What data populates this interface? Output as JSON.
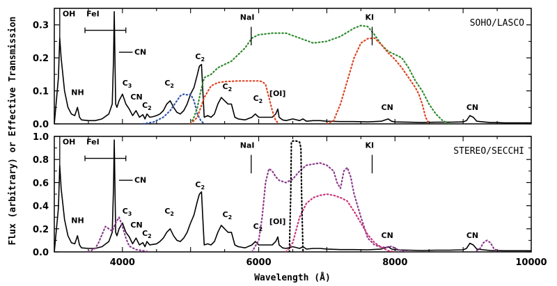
{
  "chart_data": {
    "type": "line",
    "xlabel": "Wavelength (Å)",
    "ylabel": "Flux (arbitrary) or Effective Transmission",
    "xlim": [
      3000,
      10000
    ],
    "x_ticks": [
      4000,
      6000,
      8000,
      10000
    ],
    "x_tick_labels": [
      "4000",
      "6000",
      "8000",
      "10000"
    ],
    "panels": [
      {
        "label": "SOHO/LASCO",
        "ylim": [
          0,
          0.35
        ],
        "y_ticks": [
          0,
          0.1,
          0.2,
          0.3
        ],
        "y_tick_labels": [
          "0.0",
          "0.1",
          "0.2",
          "0.3"
        ],
        "series": [
          {
            "color": "#000000",
            "style": "solid",
            "x": [
              3000,
              3060,
              3080,
              3100,
              3150,
              3200,
              3250,
              3300,
              3340,
              3370,
              3400,
              3500,
              3600,
              3700,
              3800,
              3850,
              3870,
              3880,
              3890,
              3900,
              3920,
              3950,
              4000,
              4050,
              4100,
              4150,
              4200,
              4250,
              4300,
              4330,
              4360,
              4400,
              4450,
              4500,
              4550,
              4600,
              4650,
              4700,
              4750,
              4800,
              4850,
              4900,
              4950,
              5000,
              5050,
              5100,
              5130,
              5160,
              5180,
              5200,
              5250,
              5300,
              5350,
              5400,
              5450,
              5500,
              5550,
              5600,
              5650,
              5700,
              5800,
              5900,
              5950,
              6000,
              6050,
              6100,
              6200,
              6250,
              6280,
              6300,
              6350,
              6400,
              6500,
              6600,
              6650,
              6700,
              6800,
              6900,
              7000,
              7200,
              7400,
              7600,
              7800,
              7900,
              7950,
              8000,
              8200,
              8400,
              8600,
              8800,
              9000,
              9050,
              9100,
              9150,
              9200,
              9300,
              9400,
              9500,
              9600,
              9800,
              10000
            ],
            "y": [
              0.0,
              0.14,
              0.26,
              0.2,
              0.1,
              0.05,
              0.03,
              0.025,
              0.05,
              0.02,
              0.012,
              0.01,
              0.01,
              0.015,
              0.03,
              0.06,
              0.2,
              0.34,
              0.2,
              0.06,
              0.05,
              0.07,
              0.09,
              0.06,
              0.045,
              0.025,
              0.04,
              0.02,
              0.028,
              0.015,
              0.03,
              0.02,
              0.022,
              0.025,
              0.03,
              0.04,
              0.06,
              0.07,
              0.05,
              0.035,
              0.03,
              0.04,
              0.06,
              0.09,
              0.11,
              0.15,
              0.175,
              0.18,
              0.1,
              0.02,
              0.025,
              0.02,
              0.03,
              0.06,
              0.08,
              0.07,
              0.06,
              0.06,
              0.02,
              0.015,
              0.012,
              0.02,
              0.03,
              0.02,
              0.02,
              0.02,
              0.02,
              0.03,
              0.045,
              0.02,
              0.012,
              0.01,
              0.015,
              0.01,
              0.015,
              0.008,
              0.01,
              0.01,
              0.008,
              0.007,
              0.007,
              0.006,
              0.008,
              0.015,
              0.008,
              0.006,
              0.005,
              0.004,
              0.005,
              0.005,
              0.006,
              0.01,
              0.025,
              0.02,
              0.008,
              0.006,
              0.004,
              0.004,
              0.003,
              0.003,
              0.003
            ]
          },
          {
            "color": "#3355aa",
            "style": "dotted",
            "x": [
              4300,
              4450,
              4600,
              4700,
              4800,
              4850,
              4900,
              4950,
              5000,
              5050,
              5100,
              5150,
              5200
            ],
            "y": [
              0.0,
              0.005,
              0.02,
              0.04,
              0.07,
              0.085,
              0.09,
              0.088,
              0.09,
              0.07,
              0.03,
              0.01,
              0.0
            ]
          },
          {
            "color": "#2e8b2e",
            "style": "dotted",
            "x": [
              5000,
              5050,
              5100,
              5150,
              5200,
              5300,
              5400,
              5500,
              5600,
              5700,
              5800,
              5900,
              6000,
              6200,
              6400,
              6600,
              6800,
              7000,
              7200,
              7400,
              7500,
              7600,
              7700,
              7800,
              7900,
              8000,
              8100,
              8200,
              8300,
              8400,
              8500,
              8600,
              8700,
              8800
            ],
            "y": [
              0.0,
              0.02,
              0.05,
              0.1,
              0.14,
              0.15,
              0.17,
              0.18,
              0.19,
              0.21,
              0.23,
              0.26,
              0.27,
              0.275,
              0.275,
              0.26,
              0.245,
              0.25,
              0.265,
              0.29,
              0.298,
              0.295,
              0.27,
              0.24,
              0.22,
              0.21,
              0.2,
              0.17,
              0.13,
              0.1,
              0.06,
              0.03,
              0.01,
              0.0
            ]
          },
          {
            "color": "#dd4422",
            "style": "dotted",
            "x": [
              5000,
              5100,
              5200,
              5300,
              5400,
              5500,
              5700,
              5900,
              6000,
              6050,
              6100,
              6150,
              6200,
              6250,
              6300
            ],
            "y": [
              0.0,
              0.02,
              0.08,
              0.115,
              0.125,
              0.128,
              0.13,
              0.13,
              0.13,
              0.128,
              0.12,
              0.08,
              0.04,
              0.01,
              0.0
            ]
          },
          {
            "color": "#dd4422",
            "style": "dotted",
            "x": [
              7000,
              7100,
              7200,
              7300,
              7400,
              7500,
              7600,
              7700,
              7800,
              7900,
              8000,
              8100,
              8200,
              8300,
              8350,
              8400,
              8450,
              8500
            ],
            "y": [
              0.0,
              0.01,
              0.06,
              0.13,
              0.2,
              0.245,
              0.258,
              0.26,
              0.24,
              0.215,
              0.195,
              0.17,
              0.14,
              0.11,
              0.09,
              0.06,
              0.02,
              0.0
            ]
          }
        ],
        "annotations": [
          "OH",
          "FeI",
          "CN",
          "NH",
          "C3",
          "CN",
          "C2",
          "C2",
          "C2",
          "C2",
          "C2",
          "[OI]",
          "NaI",
          "KI",
          "CN",
          "CN"
        ]
      },
      {
        "label": "STEREO/SECCHI",
        "ylim": [
          0,
          1.0
        ],
        "y_ticks": [
          0,
          0.2,
          0.4,
          0.6,
          0.8,
          1.0
        ],
        "y_tick_labels": [
          "0.0",
          "0.2",
          "0.4",
          "0.6",
          "0.8",
          "1.0"
        ],
        "series": [
          {
            "color": "#000000",
            "style": "solid",
            "x": [
              3000,
              3060,
              3080,
              3100,
              3150,
              3200,
              3250,
              3300,
              3340,
              3370,
              3400,
              3500,
              3600,
              3700,
              3800,
              3850,
              3870,
              3880,
              3890,
              3900,
              3920,
              3950,
              4000,
              4050,
              4100,
              4150,
              4200,
              4250,
              4300,
              4330,
              4360,
              4400,
              4450,
              4500,
              4550,
              4600,
              4650,
              4700,
              4750,
              4800,
              4850,
              4900,
              4950,
              5000,
              5050,
              5100,
              5130,
              5160,
              5180,
              5200,
              5250,
              5300,
              5350,
              5400,
              5450,
              5500,
              5550,
              5600,
              5650,
              5700,
              5800,
              5900,
              5950,
              6000,
              6050,
              6100,
              6200,
              6250,
              6280,
              6300,
              6350,
              6400,
              6500,
              6600,
              6650,
              6700,
              6800,
              6900,
              7000,
              7200,
              7400,
              7600,
              7800,
              7900,
              7950,
              8000,
              8200,
              8400,
              8600,
              8800,
              9000,
              9050,
              9100,
              9150,
              9200,
              9300,
              9400,
              9500,
              9600,
              9800,
              10000
            ],
            "y": [
              0.0,
              0.38,
              0.75,
              0.55,
              0.28,
              0.14,
              0.08,
              0.07,
              0.14,
              0.06,
              0.035,
              0.03,
              0.03,
              0.045,
              0.09,
              0.17,
              0.57,
              0.97,
              0.57,
              0.17,
              0.14,
              0.2,
              0.25,
              0.17,
              0.13,
              0.07,
              0.12,
              0.06,
              0.08,
              0.045,
              0.09,
              0.06,
              0.065,
              0.07,
              0.09,
              0.12,
              0.17,
              0.2,
              0.14,
              0.1,
              0.09,
              0.12,
              0.17,
              0.25,
              0.32,
              0.44,
              0.5,
              0.52,
              0.29,
              0.06,
              0.07,
              0.06,
              0.09,
              0.17,
              0.23,
              0.2,
              0.17,
              0.17,
              0.06,
              0.045,
              0.035,
              0.06,
              0.09,
              0.06,
              0.06,
              0.06,
              0.06,
              0.09,
              0.13,
              0.06,
              0.035,
              0.03,
              0.045,
              0.03,
              0.045,
              0.025,
              0.03,
              0.03,
              0.025,
              0.02,
              0.02,
              0.018,
              0.025,
              0.045,
              0.025,
              0.018,
              0.015,
              0.012,
              0.015,
              0.015,
              0.018,
              0.03,
              0.075,
              0.06,
              0.025,
              0.018,
              0.012,
              0.012,
              0.01,
              0.01,
              0.01
            ]
          },
          {
            "color": "#8b3a8b",
            "style": "dotted",
            "x": [
              3500,
              3600,
              3650,
              3700,
              3750,
              3800,
              3850,
              3900,
              3950,
              4000,
              4050,
              4100,
              4200,
              4300,
              4400
            ],
            "y": [
              0.0,
              0.03,
              0.08,
              0.15,
              0.22,
              0.2,
              0.18,
              0.25,
              0.3,
              0.22,
              0.12,
              0.05,
              0.02,
              0.01,
              0.0
            ]
          },
          {
            "color": "#8b3a8b",
            "style": "dotted",
            "x": [
              5900,
              6000,
              6050,
              6100,
              6150,
              6200,
              6250,
              6300,
              6400,
              6500,
              6600,
              6700,
              6800,
              6900,
              7000,
              7100,
              7150,
              7200,
              7250,
              7300,
              7350,
              7400,
              7500,
              7600,
              7700,
              7800,
              7900,
              7950,
              8000,
              8100,
              8200
            ],
            "y": [
              0.0,
              0.1,
              0.3,
              0.6,
              0.72,
              0.7,
              0.65,
              0.62,
              0.6,
              0.63,
              0.7,
              0.75,
              0.76,
              0.77,
              0.75,
              0.7,
              0.6,
              0.55,
              0.7,
              0.73,
              0.65,
              0.5,
              0.3,
              0.12,
              0.06,
              0.04,
              0.04,
              0.05,
              0.03,
              0.01,
              0.0
            ]
          },
          {
            "color": "#8b3a8b",
            "style": "dotted",
            "x": [
              9200,
              9250,
              9300,
              9350,
              9400,
              9450,
              9500
            ],
            "y": [
              0.01,
              0.03,
              0.08,
              0.1,
              0.08,
              0.03,
              0.01
            ]
          },
          {
            "color": "#cc3377",
            "style": "dotted",
            "x": [
              6400,
              6500,
              6600,
              6700,
              6800,
              6900,
              7000,
              7100,
              7200,
              7300,
              7400,
              7500,
              7600,
              7700,
              7800,
              7900,
              8000
            ],
            "y": [
              0.0,
              0.08,
              0.3,
              0.42,
              0.47,
              0.49,
              0.5,
              0.49,
              0.47,
              0.44,
              0.35,
              0.25,
              0.15,
              0.08,
              0.04,
              0.01,
              0.0
            ]
          },
          {
            "color": "#000000",
            "style": "dotted",
            "x": [
              6450,
              6470,
              6480,
              6500,
              6550,
              6600,
              6620,
              6630,
              6650
            ],
            "y": [
              0.0,
              0.5,
              0.95,
              0.96,
              0.96,
              0.95,
              0.9,
              0.5,
              0.0
            ]
          }
        ],
        "annotations": [
          "OH",
          "FeI",
          "CN",
          "NH",
          "C3",
          "CN",
          "C2",
          "C2",
          "C2",
          "C2",
          "C2",
          "[OI]",
          "NaI",
          "KI",
          "CN",
          "CN"
        ]
      }
    ]
  }
}
